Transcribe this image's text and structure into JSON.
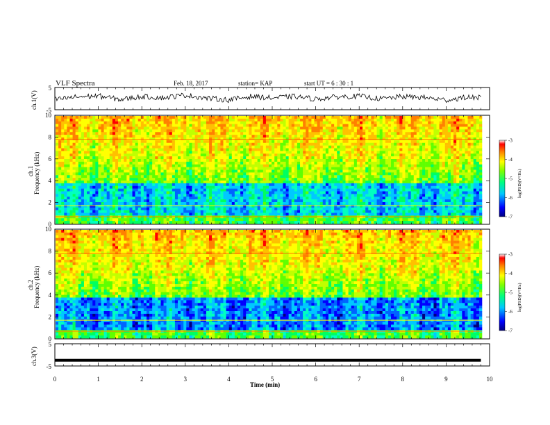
{
  "header": {
    "title": "VLF Spectra",
    "date": "Feb. 18, 2017",
    "station": "station= KAP",
    "start": "start  UT =  6 : 30 : 1"
  },
  "chart_data": [
    {
      "type": "line",
      "panel": "ch1_waveform",
      "ylabel": "ch.1(V)",
      "ylim": [
        -5,
        5
      ],
      "ytick_labels": [
        "5",
        "-5"
      ],
      "xlim": [
        0,
        10
      ],
      "series": [
        {
          "x": [
            0,
            0.5,
            1,
            1.5,
            2,
            2.5,
            3,
            3.5,
            4,
            4.5,
            5,
            5.5,
            6,
            6.5,
            7,
            7.5,
            8,
            8.5,
            9,
            9.5,
            9.8
          ],
          "values": [
            -0.5,
            0.8,
            1.2,
            -0.4,
            0.9,
            0.4,
            1.6,
            0.2,
            -0.6,
            1.0,
            0.3,
            1.0,
            -0.2,
            0.8,
            1.1,
            -0.1,
            0.9,
            0.5,
            -0.7,
            0.7,
            0.4
          ]
        }
      ]
    },
    {
      "type": "heatmap",
      "panel": "ch1_spectrogram",
      "ylabel": "ch.1\nFrequency (kHz)",
      "ylim": [
        0,
        10
      ],
      "ytick_labels": [
        "0",
        "2",
        "4",
        "6",
        "8",
        "10"
      ],
      "xlim": [
        0,
        10
      ],
      "colorbar": {
        "label": "log(PSD)(V²/Hz)",
        "range": [
          -7,
          -3
        ],
        "tick_labels": [
          "-3",
          "-4",
          "-5",
          "-6",
          "-7"
        ]
      }
    },
    {
      "type": "heatmap",
      "panel": "ch2_spectrogram",
      "ylabel": "ch.2\nFrequency (kHz)",
      "ylim": [
        0,
        10
      ],
      "ytick_labels": [
        "0",
        "2",
        "4",
        "6",
        "8",
        "10"
      ],
      "xlim": [
        0,
        10
      ],
      "colorbar": {
        "label": "log(PSD)(V²/Hz)",
        "range": [
          -7,
          -3
        ],
        "tick_labels": [
          "-3",
          "-4",
          "-5",
          "-6",
          "-7"
        ]
      }
    },
    {
      "type": "line",
      "panel": "ch3_waveform",
      "ylabel": "ch.3(V)",
      "ylim": [
        -5,
        5
      ],
      "ytick_labels": [
        "5",
        "-5"
      ],
      "xlim": [
        0,
        10
      ],
      "xlabel": "Time  (min)",
      "xtick_labels": [
        "0",
        "1",
        "2",
        "3",
        "4",
        "5",
        "6",
        "7",
        "8",
        "9",
        "10"
      ],
      "series": [
        {
          "x": [
            0,
            9.8
          ],
          "values": [
            -2.4,
            -2.4
          ]
        }
      ]
    }
  ]
}
